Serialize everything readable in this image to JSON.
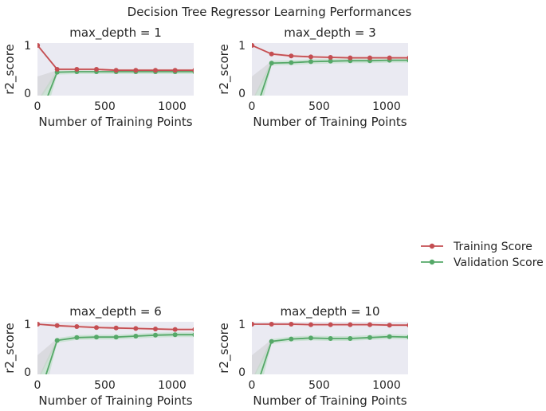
{
  "figure": {
    "suptitle": "Decision Tree Regressor Learning Performances",
    "legend_position": "center-right",
    "colors": {
      "training": "#c44e52",
      "validation": "#55a868",
      "plot_background": "#eaeaf2",
      "train_band": "#f2d4d5",
      "valid_band": "#b5dcbf"
    }
  },
  "chart_data": [
    {
      "type": "line",
      "title": "max_depth = 1",
      "xlabel": "Number of Training Points",
      "ylabel": "r2_score",
      "xlim": [
        0,
        1160
      ],
      "ylim": [
        -0.05,
        1.05
      ],
      "xticks": [
        0,
        500,
        1000
      ],
      "yticks": [
        0,
        1
      ],
      "grid": false,
      "x": [
        1,
        146,
        292,
        438,
        584,
        730,
        876,
        1022,
        1168
      ],
      "series": [
        {
          "name": "Training Score",
          "values": [
            1.0,
            0.5,
            0.5,
            0.5,
            0.48,
            0.48,
            0.48,
            0.48,
            0.48
          ]
        },
        {
          "name": "Validation Score",
          "values": [
            -0.6,
            0.44,
            0.45,
            0.45,
            0.45,
            0.45,
            0.45,
            0.45,
            0.45
          ]
        }
      ]
    },
    {
      "type": "line",
      "title": "max_depth = 3",
      "xlabel": "Number of Training Points",
      "ylabel": "r2_score",
      "xlim": [
        0,
        1160
      ],
      "ylim": [
        -0.05,
        1.05
      ],
      "xticks": [
        0,
        500,
        1000
      ],
      "yticks": [
        0,
        1
      ],
      "grid": false,
      "x": [
        1,
        146,
        292,
        438,
        584,
        730,
        876,
        1022,
        1168
      ],
      "series": [
        {
          "name": "Training Score",
          "values": [
            1.0,
            0.82,
            0.78,
            0.76,
            0.75,
            0.74,
            0.74,
            0.74,
            0.74
          ]
        },
        {
          "name": "Validation Score",
          "values": [
            -0.6,
            0.63,
            0.64,
            0.66,
            0.67,
            0.68,
            0.68,
            0.69,
            0.69
          ]
        }
      ]
    },
    {
      "type": "line",
      "title": "max_depth = 6",
      "xlabel": "Number of Training Points",
      "ylabel": "r2_score",
      "xlim": [
        0,
        1160
      ],
      "ylim": [
        -0.05,
        1.05
      ],
      "xticks": [
        0,
        500,
        1000
      ],
      "yticks": [
        0,
        1
      ],
      "grid": false,
      "x": [
        1,
        146,
        292,
        438,
        584,
        730,
        876,
        1022,
        1168
      ],
      "series": [
        {
          "name": "Training Score",
          "values": [
            1.0,
            0.97,
            0.95,
            0.93,
            0.92,
            0.91,
            0.9,
            0.89,
            0.89
          ]
        },
        {
          "name": "Validation Score",
          "values": [
            -0.6,
            0.66,
            0.72,
            0.73,
            0.73,
            0.75,
            0.77,
            0.78,
            0.78
          ]
        }
      ]
    },
    {
      "type": "line",
      "title": "max_depth = 10",
      "xlabel": "Number of Training Points",
      "ylabel": "r2_score",
      "xlim": [
        0,
        1160
      ],
      "ylim": [
        -0.05,
        1.05
      ],
      "xticks": [
        0,
        500,
        1000
      ],
      "yticks": [
        0,
        1
      ],
      "grid": false,
      "x": [
        1,
        146,
        292,
        438,
        584,
        730,
        876,
        1022,
        1168
      ],
      "series": [
        {
          "name": "Training Score",
          "values": [
            1.0,
            1.0,
            1.0,
            0.99,
            0.99,
            0.99,
            0.99,
            0.98,
            0.98
          ]
        },
        {
          "name": "Validation Score",
          "values": [
            -0.6,
            0.64,
            0.69,
            0.71,
            0.7,
            0.7,
            0.72,
            0.74,
            0.73
          ]
        }
      ]
    }
  ],
  "legend": {
    "entries": [
      "Training Score",
      "Validation Score"
    ]
  }
}
